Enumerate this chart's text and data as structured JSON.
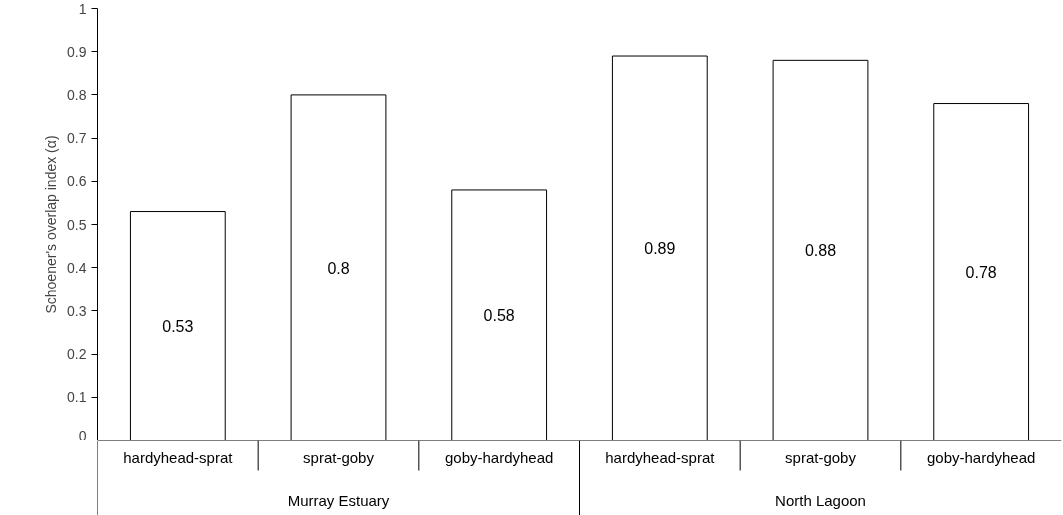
{
  "chart_data": {
    "type": "bar",
    "ylabel": "Schoener's overlap index (α)",
    "categories": [
      "hardyhead-sprat",
      "sprat-goby",
      "goby-hardyhead",
      "hardyhead-sprat",
      "sprat-goby",
      "goby-hardyhead"
    ],
    "values": [
      0.53,
      0.8,
      0.58,
      0.89,
      0.88,
      0.78
    ],
    "color": "#ffffff",
    "ylim": [
      0,
      1
    ],
    "yticks": [
      0,
      0.1,
      0.2,
      0.3,
      0.4,
      0.5,
      0.6,
      0.7,
      0.8,
      0.9,
      1
    ],
    "data_labels": true,
    "grid": false,
    "annotations": [
      "Murray Estuary",
      "North Lagoon"
    ]
  }
}
